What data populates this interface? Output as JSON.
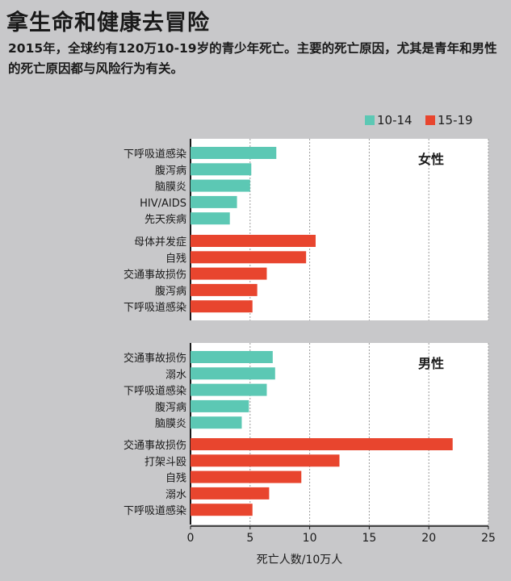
{
  "header": {
    "title": "拿生命和健康去冒险",
    "subtitle": "2015年，全球约有120万10-19岁的青少年死亡。主要的死亡原因，尤其是青年和男性的死亡原因都与风险行为有关。"
  },
  "colors": {
    "age_10_14": "#5cc8b4",
    "age_15_19": "#e8452e",
    "panel": "#ffffff",
    "background": "#c8c8ca"
  },
  "chart_data": {
    "type": "bar",
    "orientation": "horizontal",
    "xlabel": "死亡人数/10万人",
    "xlim": [
      0,
      25
    ],
    "xticks": [
      0,
      5,
      10,
      15,
      20,
      25
    ],
    "grid": "vertical dotted",
    "legend": {
      "placement": "top-right",
      "entries": [
        {
          "label": "10-14",
          "color": "#5cc8b4"
        },
        {
          "label": "15-19",
          "color": "#e8452e"
        }
      ]
    },
    "panels": [
      {
        "label": "女性",
        "groups": [
          {
            "series": "10-14",
            "categories": [
              "下呼吸道感染",
              "腹泻病",
              "脑膜炎",
              "HIV/AIDS",
              "先天疾病"
            ],
            "values": [
              7.2,
              5.1,
              5.0,
              3.9,
              3.3
            ]
          },
          {
            "series": "15-19",
            "categories": [
              "母体并发症",
              "自残",
              "交通事故损伤",
              "腹泻病",
              "下呼吸道感染"
            ],
            "values": [
              10.5,
              9.7,
              6.4,
              5.6,
              5.2
            ]
          }
        ]
      },
      {
        "label": "男性",
        "groups": [
          {
            "series": "10-14",
            "categories": [
              "交通事故损伤",
              "溺水",
              "下呼吸道感染",
              "腹泻病",
              "脑膜炎"
            ],
            "values": [
              6.9,
              7.1,
              6.4,
              4.9,
              4.3
            ]
          },
          {
            "series": "15-19",
            "categories": [
              "交通事故损伤",
              "打架斗殴",
              "自残",
              "溺水",
              "下呼吸道感染"
            ],
            "values": [
              22.0,
              12.5,
              9.3,
              6.6,
              5.2
            ]
          }
        ]
      }
    ]
  }
}
